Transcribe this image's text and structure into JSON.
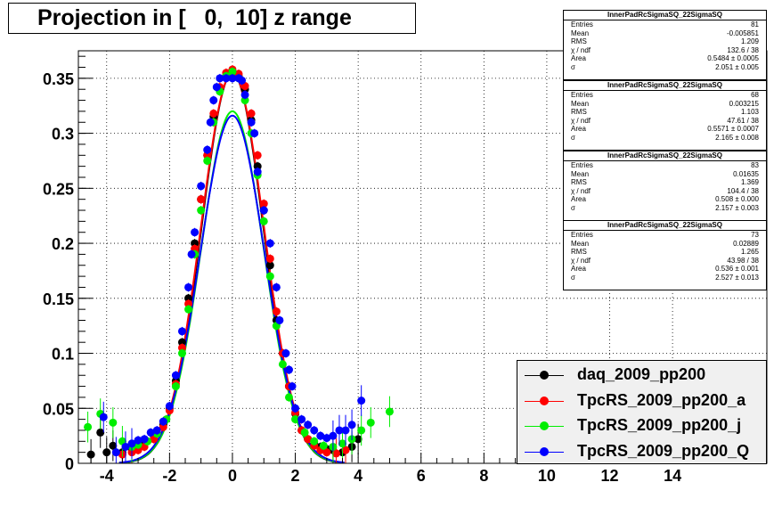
{
  "title": "Projection in [   0,  10] z range",
  "chart_data": {
    "type": "scatter",
    "xlim": [
      -4.9,
      17
    ],
    "ylim": [
      0,
      0.375
    ],
    "grid": true,
    "x_ticks": [
      "-4",
      "-2",
      "0",
      "2",
      "4",
      "6",
      "8",
      "10",
      "12",
      "14"
    ],
    "y_ticks": [
      "0",
      "0.05",
      "0.1",
      "0.15",
      "0.2",
      "0.25",
      "0.3",
      "0.35"
    ],
    "legend_position": "bottom-right",
    "series": [
      {
        "name": "daq_2009_pp200",
        "color": "#000000",
        "fit_peak": 0.355,
        "fit_sigma": 0.98,
        "points": [
          [
            -4.5,
            0.008
          ],
          [
            -4.2,
            0.028
          ],
          [
            -4.0,
            0.01
          ],
          [
            -3.8,
            0.016
          ],
          [
            -3.5,
            0.01
          ],
          [
            -3.2,
            0.013
          ],
          [
            -3.0,
            0.015
          ],
          [
            -2.8,
            0.018
          ],
          [
            -2.5,
            0.025
          ],
          [
            -2.2,
            0.035
          ],
          [
            -2.0,
            0.05
          ],
          [
            -1.8,
            0.075
          ],
          [
            -1.6,
            0.11
          ],
          [
            -1.4,
            0.15
          ],
          [
            -1.2,
            0.2
          ],
          [
            -1.0,
            0.24
          ],
          [
            -0.8,
            0.28
          ],
          [
            -0.6,
            0.315
          ],
          [
            -0.4,
            0.34
          ],
          [
            -0.2,
            0.352
          ],
          [
            0.0,
            0.356
          ],
          [
            0.2,
            0.352
          ],
          [
            0.4,
            0.34
          ],
          [
            0.6,
            0.312
          ],
          [
            0.8,
            0.27
          ],
          [
            1.0,
            0.23
          ],
          [
            1.2,
            0.18
          ],
          [
            1.4,
            0.13
          ],
          [
            1.6,
            0.1
          ],
          [
            1.8,
            0.07
          ],
          [
            2.0,
            0.045
          ],
          [
            2.2,
            0.03
          ],
          [
            2.4,
            0.022
          ],
          [
            2.6,
            0.018
          ],
          [
            2.8,
            0.015
          ],
          [
            3.0,
            0.013
          ],
          [
            3.2,
            0.012
          ],
          [
            3.5,
            0.01
          ],
          [
            3.8,
            0.015
          ],
          [
            4.0,
            0.022
          ]
        ]
      },
      {
        "name": "TpcRS_2009_pp200_a",
        "color": "#ff0000",
        "fit_peak": 0.355,
        "fit_sigma": 1.0,
        "points": [
          [
            -3.5,
            0.008
          ],
          [
            -3.2,
            0.01
          ],
          [
            -3.0,
            0.012
          ],
          [
            -2.8,
            0.015
          ],
          [
            -2.5,
            0.022
          ],
          [
            -2.2,
            0.033
          ],
          [
            -2.0,
            0.048
          ],
          [
            -1.8,
            0.072
          ],
          [
            -1.6,
            0.105
          ],
          [
            -1.4,
            0.145
          ],
          [
            -1.2,
            0.195
          ],
          [
            -1.0,
            0.24
          ],
          [
            -0.8,
            0.28
          ],
          [
            -0.6,
            0.318
          ],
          [
            -0.4,
            0.342
          ],
          [
            -0.2,
            0.355
          ],
          [
            0.0,
            0.358
          ],
          [
            0.2,
            0.354
          ],
          [
            0.4,
            0.343
          ],
          [
            0.6,
            0.318
          ],
          [
            0.8,
            0.28
          ],
          [
            1.0,
            0.236
          ],
          [
            1.2,
            0.186
          ],
          [
            1.4,
            0.138
          ],
          [
            1.6,
            0.1
          ],
          [
            1.8,
            0.07
          ],
          [
            2.0,
            0.046
          ],
          [
            2.2,
            0.03
          ],
          [
            2.4,
            0.022
          ],
          [
            2.6,
            0.016
          ],
          [
            2.8,
            0.012
          ],
          [
            3.0,
            0.01
          ],
          [
            3.3,
            0.009
          ],
          [
            3.6,
            0.012
          ]
        ]
      },
      {
        "name": "TpcRS_2009_pp200_j",
        "color": "#00ee00",
        "fit_peak": 0.32,
        "fit_sigma": 1.0,
        "points": [
          [
            -4.6,
            0.033
          ],
          [
            -4.2,
            0.045
          ],
          [
            -3.8,
            0.037
          ],
          [
            -3.5,
            0.02
          ],
          [
            -3.2,
            0.015
          ],
          [
            -3.0,
            0.017
          ],
          [
            -2.7,
            0.02
          ],
          [
            -2.4,
            0.027
          ],
          [
            -2.1,
            0.04
          ],
          [
            -1.8,
            0.07
          ],
          [
            -1.6,
            0.1
          ],
          [
            -1.4,
            0.14
          ],
          [
            -1.2,
            0.19
          ],
          [
            -1.0,
            0.23
          ],
          [
            -0.8,
            0.275
          ],
          [
            -0.6,
            0.31
          ],
          [
            -0.4,
            0.338
          ],
          [
            -0.2,
            0.352
          ],
          [
            0.0,
            0.356
          ],
          [
            0.2,
            0.35
          ],
          [
            0.4,
            0.33
          ],
          [
            0.6,
            0.3
          ],
          [
            0.8,
            0.262
          ],
          [
            1.0,
            0.22
          ],
          [
            1.2,
            0.17
          ],
          [
            1.4,
            0.125
          ],
          [
            1.6,
            0.09
          ],
          [
            1.8,
            0.06
          ],
          [
            2.0,
            0.04
          ],
          [
            2.3,
            0.028
          ],
          [
            2.6,
            0.02
          ],
          [
            2.9,
            0.016
          ],
          [
            3.2,
            0.015
          ],
          [
            3.5,
            0.018
          ],
          [
            3.8,
            0.022
          ],
          [
            4.1,
            0.03
          ],
          [
            4.4,
            0.037
          ],
          [
            5.0,
            0.047
          ]
        ]
      },
      {
        "name": "TpcRS_2009_pp200_Q",
        "color": "#0000ff",
        "fit_peak": 0.316,
        "fit_sigma": 1.02,
        "points": [
          [
            -4.1,
            0.042
          ],
          [
            -3.7,
            0.01
          ],
          [
            -3.4,
            0.015
          ],
          [
            -3.2,
            0.018
          ],
          [
            -3.0,
            0.021
          ],
          [
            -2.8,
            0.022
          ],
          [
            -2.6,
            0.028
          ],
          [
            -2.4,
            0.03
          ],
          [
            -2.2,
            0.038
          ],
          [
            -2.0,
            0.052
          ],
          [
            -1.8,
            0.08
          ],
          [
            -1.6,
            0.12
          ],
          [
            -1.4,
            0.16
          ],
          [
            -1.3,
            0.19
          ],
          [
            -1.2,
            0.21
          ],
          [
            -1.0,
            0.252
          ],
          [
            -0.8,
            0.285
          ],
          [
            -0.7,
            0.31
          ],
          [
            -0.6,
            0.33
          ],
          [
            -0.5,
            0.342
          ],
          [
            -0.4,
            0.35
          ],
          [
            -0.2,
            0.35
          ],
          [
            0.0,
            0.35
          ],
          [
            0.2,
            0.35
          ],
          [
            0.3,
            0.348
          ],
          [
            0.4,
            0.335
          ],
          [
            0.6,
            0.31
          ],
          [
            0.7,
            0.3
          ],
          [
            0.8,
            0.265
          ],
          [
            1.0,
            0.23
          ],
          [
            1.2,
            0.2
          ],
          [
            1.4,
            0.16
          ],
          [
            1.5,
            0.13
          ],
          [
            1.7,
            0.1
          ],
          [
            1.8,
            0.085
          ],
          [
            1.9,
            0.07
          ],
          [
            2.0,
            0.05
          ],
          [
            2.2,
            0.04
          ],
          [
            2.4,
            0.035
          ],
          [
            2.6,
            0.03
          ],
          [
            2.8,
            0.025
          ],
          [
            3.0,
            0.023
          ],
          [
            3.2,
            0.025
          ],
          [
            3.4,
            0.03
          ],
          [
            3.6,
            0.03
          ],
          [
            3.8,
            0.035
          ],
          [
            4.1,
            0.057
          ]
        ]
      }
    ],
    "stats_boxes": [
      {
        "title": "InnerPadRcSigmaSQ_22SigmaSQ",
        "rows": [
          [
            "Entries",
            "81"
          ],
          [
            "Mean",
            "-0.005851"
          ],
          [
            "RMS",
            "1.209"
          ],
          [
            "χ  / ndf",
            "132.6 / 38"
          ],
          [
            "Area",
            "0.5484 ± 0.0005"
          ],
          [
            "σ",
            "2.051 ± 0.005"
          ]
        ]
      },
      {
        "title": "InnerPadRcSigmaSQ_22SigmaSQ",
        "rows": [
          [
            "Entries",
            "68"
          ],
          [
            "Mean",
            "0.003215"
          ],
          [
            "RMS",
            "1.103"
          ],
          [
            "χ  / ndf",
            "47.61 / 38"
          ],
          [
            "Area",
            "0.5571 ± 0.0007"
          ],
          [
            "σ",
            "2.165 ± 0.008"
          ]
        ]
      },
      {
        "title": "InnerPadRcSigmaSQ_22SigmaSQ",
        "rows": [
          [
            "Entries",
            "83"
          ],
          [
            "Mean",
            "0.01635"
          ],
          [
            "RMS",
            "1.369"
          ],
          [
            "χ  / ndf",
            "104.4 / 38"
          ],
          [
            "Area",
            "0.508 ± 0.000"
          ],
          [
            "σ",
            "2.157 ± 0.003"
          ]
        ]
      },
      {
        "title": "InnerPadRcSigmaSQ_22SigmaSQ",
        "rows": [
          [
            "Entries",
            "73"
          ],
          [
            "Mean",
            "0.02889"
          ],
          [
            "RMS",
            "1.265"
          ],
          [
            "χ  / ndf",
            "43.98 / 38"
          ],
          [
            "Area",
            "0.536 ± 0.001"
          ],
          [
            "σ",
            "2.527 ± 0.013"
          ]
        ]
      }
    ]
  }
}
